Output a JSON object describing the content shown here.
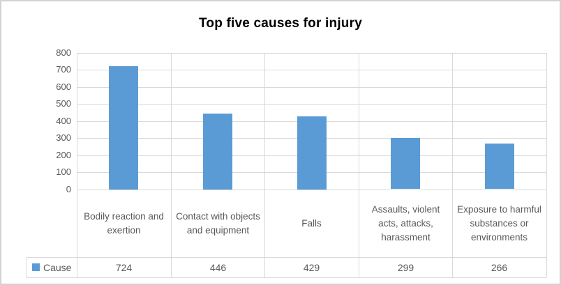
{
  "chart_data": {
    "type": "bar",
    "title": "Top five causes for injury",
    "categories": [
      "Bodily reaction and exertion",
      "Contact with objects and equipment",
      "Falls",
      "Assaults, violent acts, attacks, harassment",
      "Exposure to harmful substances or environments"
    ],
    "series": [
      {
        "name": "Cause",
        "values": [
          724,
          446,
          429,
          299,
          266
        ]
      }
    ],
    "ylim": [
      0,
      800
    ],
    "ytick_step": 100,
    "yticks": [
      0,
      100,
      200,
      300,
      400,
      500,
      600,
      700,
      800
    ],
    "grid": true,
    "legend_position": "bottom-left-data-table",
    "data_table_shown": true,
    "colors": {
      "bar": "#5b9bd5",
      "gridline": "#d9d9d9",
      "axis_text": "#595959",
      "title_text": "#000000",
      "frame_border": "#d2d2d2",
      "background": "#ffffff"
    }
  }
}
